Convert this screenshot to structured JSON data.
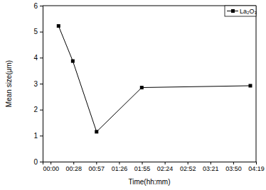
{
  "chart_data": {
    "type": "line",
    "x_label": "Time(hh:mm)",
    "y_label": "Mean size(μm)",
    "x": [
      10,
      28,
      58,
      115,
      252
    ],
    "series": [
      {
        "name": "La₂O₃",
        "color": "#000000",
        "marker": "square",
        "line_style": "solid",
        "values": [
          5.22,
          3.87,
          1.15,
          2.85,
          2.92
        ]
      }
    ],
    "xlim": [
      -10,
      259.2
    ],
    "xticks": [
      {
        "value": 0,
        "label": "00:00"
      },
      {
        "value": 28.8,
        "label": "00:28"
      },
      {
        "value": 57.6,
        "label": "00:57"
      },
      {
        "value": 86.4,
        "label": "01:26"
      },
      {
        "value": 115.2,
        "label": "01:55"
      },
      {
        "value": 144,
        "label": "02:24"
      },
      {
        "value": 172.8,
        "label": "02:52"
      },
      {
        "value": 201.6,
        "label": "03:21"
      },
      {
        "value": 230.4,
        "label": "03:50"
      },
      {
        "value": 259.2,
        "label": "04:19"
      }
    ],
    "ylim": [
      0,
      6
    ],
    "yticks": [
      0,
      1,
      2,
      3,
      4,
      5,
      6
    ],
    "grid": false,
    "legend": "upper right"
  }
}
